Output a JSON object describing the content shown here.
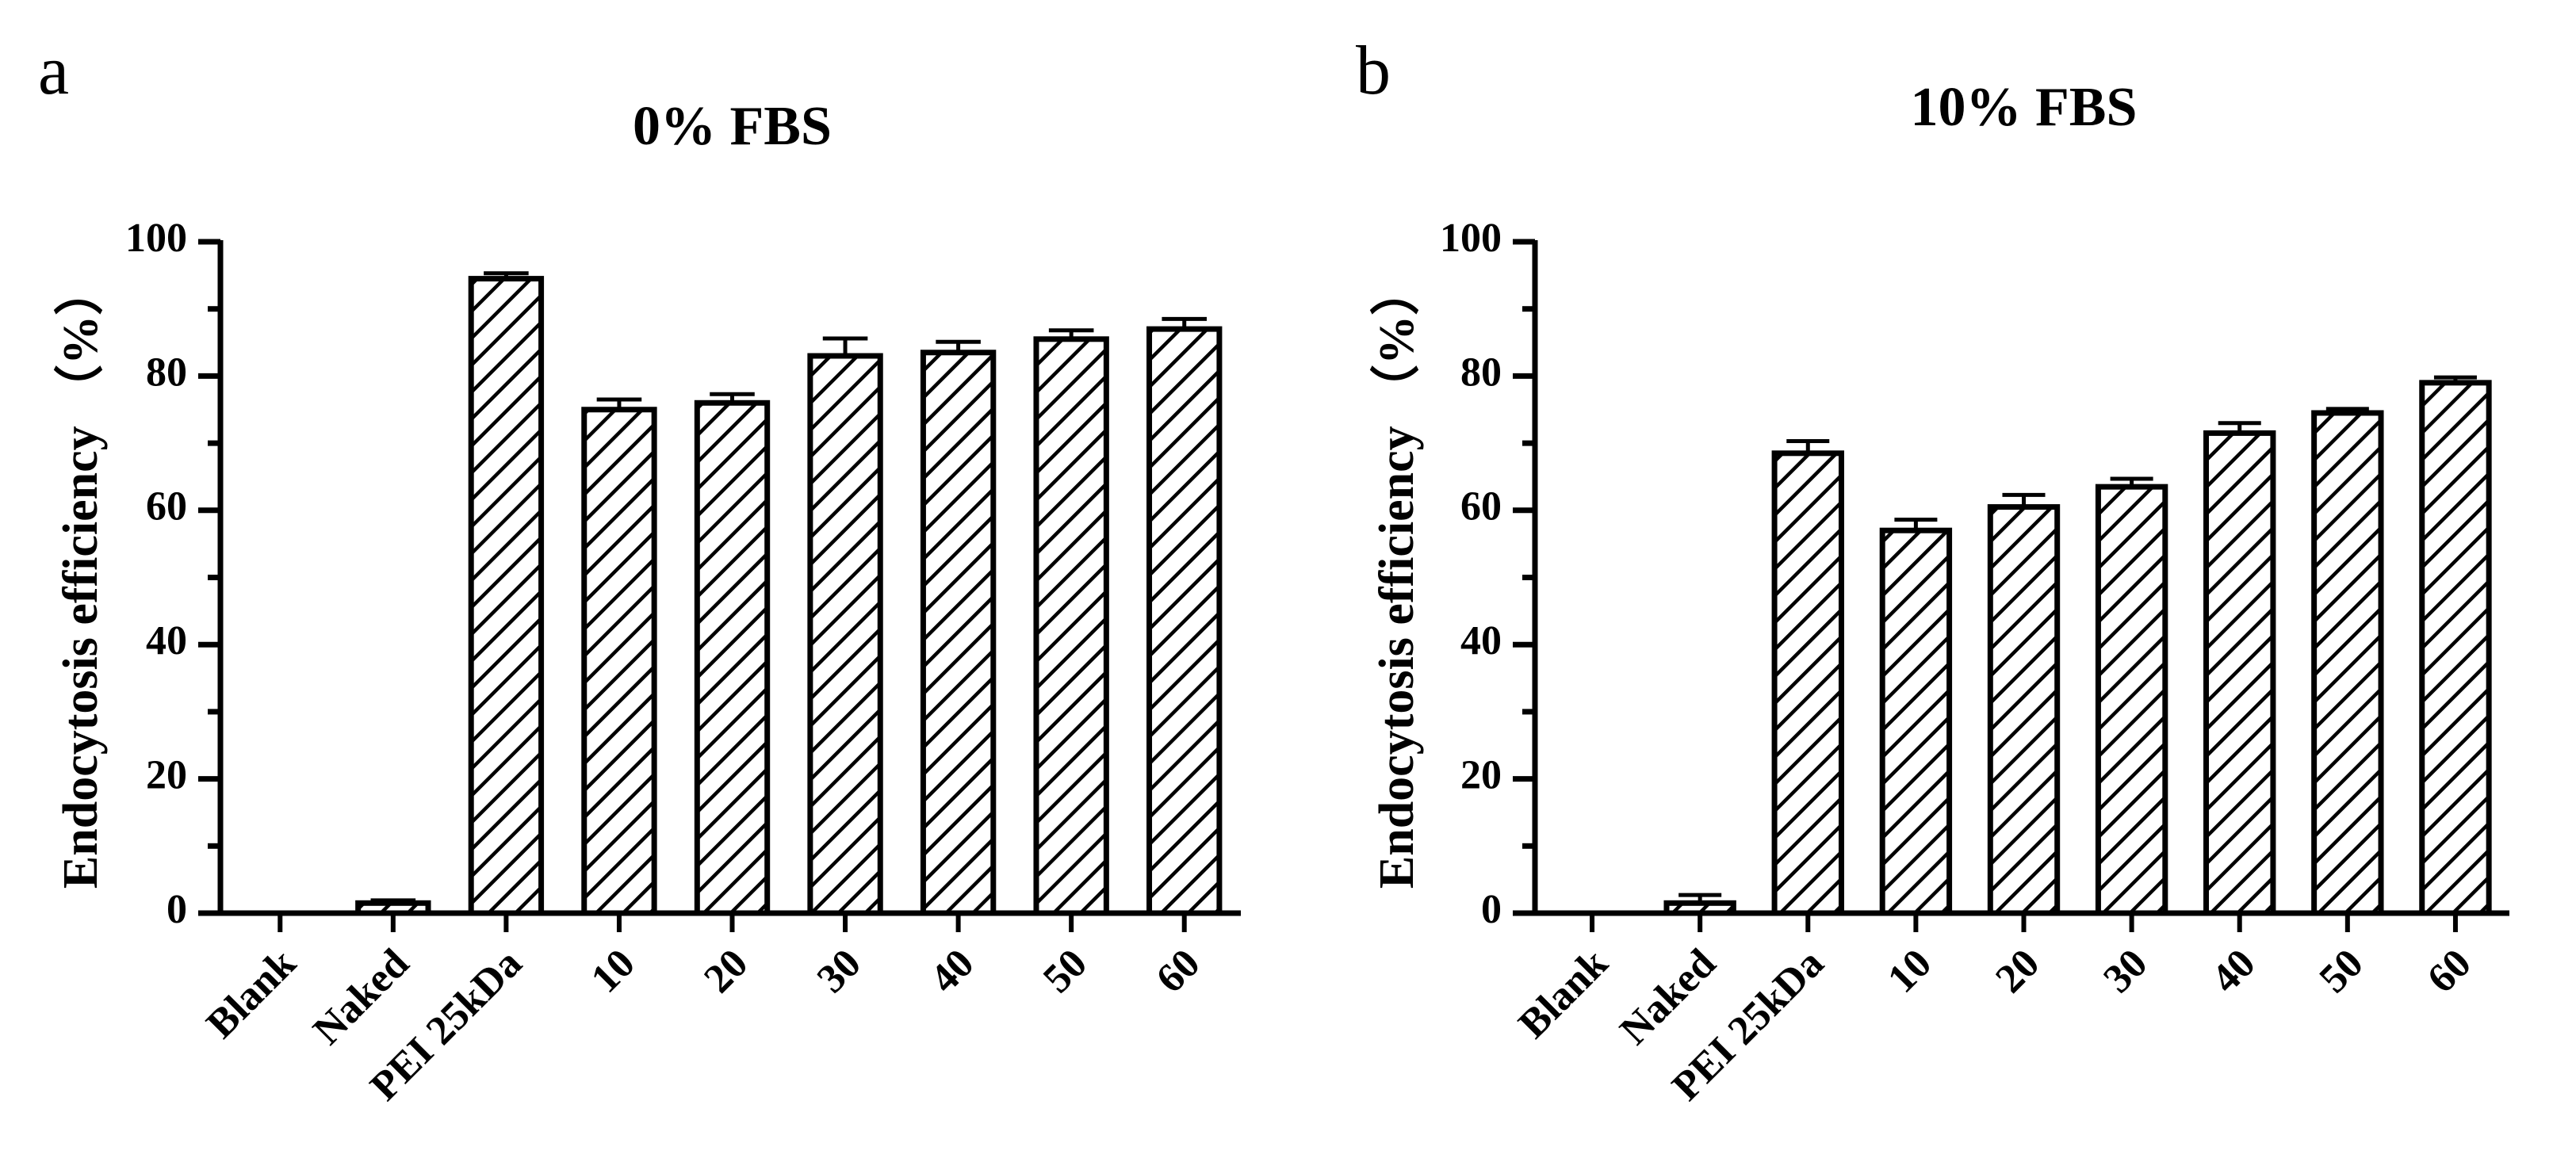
{
  "figure": {
    "panels": [
      {
        "letter": "a"
      },
      {
        "letter": "b"
      }
    ]
  },
  "chart_data": [
    {
      "type": "bar",
      "title": "0% FBS",
      "xlabel": "",
      "ylabel": "Endocytosis efficiency （%）",
      "ylim": [
        0,
        100
      ],
      "yticks": [
        "0",
        "20",
        "40",
        "60",
        "80",
        "100"
      ],
      "categories": [
        "Blank",
        "Naked",
        "PEI 25kDa",
        "10",
        "20",
        "30",
        "40",
        "50",
        "60"
      ],
      "values": [
        0,
        1.5,
        94.5,
        75,
        76,
        83,
        83.5,
        85.5,
        87
      ],
      "errors": [
        0,
        0.4,
        0.8,
        1.5,
        1.3,
        2.6,
        1.6,
        1.3,
        1.5
      ],
      "bar_fill": "hatched",
      "stroke_color": "#000000",
      "grid": false
    },
    {
      "type": "bar",
      "title": "10% FBS",
      "xlabel": "",
      "ylabel": "Endocytosis efficiency （%）",
      "ylim": [
        0,
        100
      ],
      "yticks": [
        "0",
        "20",
        "40",
        "60",
        "80",
        "100"
      ],
      "categories": [
        "Blank",
        "Naked",
        "PEI 25kDa",
        "10",
        "20",
        "30",
        "40",
        "50",
        "60"
      ],
      "values": [
        0,
        1.5,
        68.5,
        57,
        60.5,
        63.5,
        71.5,
        74.5,
        79
      ],
      "errors": [
        0,
        1.2,
        1.8,
        1.6,
        1.8,
        1.2,
        1.5,
        0.6,
        0.8
      ],
      "bar_fill": "hatched",
      "stroke_color": "#000000",
      "grid": false
    }
  ]
}
